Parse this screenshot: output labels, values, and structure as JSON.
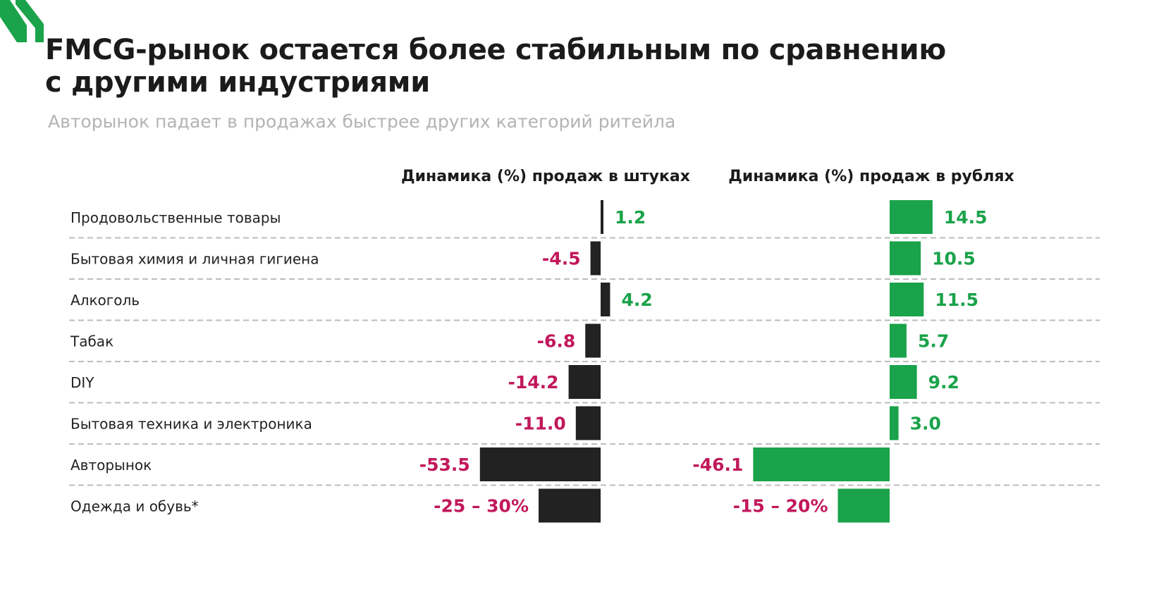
{
  "header": {
    "title_line1": "FMCG-рынок остается более стабильным по сравнению",
    "title_line2": "с другими индустриями",
    "subtitle": "Авторынок падает в продажах быстрее других категорий ритейла"
  },
  "logo": {
    "icon": "green-stripes-logo-icon",
    "color": "#1aa34a"
  },
  "colors": {
    "units_bar": "#222222",
    "rubles_bar": "#1aa34a",
    "negative_label": "#c2185b",
    "positive_label": "#1aa34a",
    "category_label": "#222222",
    "separator": "#bdbdbd"
  },
  "chart_data": [
    {
      "type": "bar",
      "orientation": "horizontal",
      "title": "Динамика (%) продаж в штуках",
      "categories": [
        "Продовольственные товары",
        "Бытовая химия и личная гигиена",
        "Алкоголь",
        "Табак",
        "DIY",
        "Бытовая техника и электроника",
        "Авторынок",
        "Одежда и обувь*"
      ],
      "values": [
        1.2,
        -4.5,
        4.2,
        -6.8,
        -14.2,
        -11.0,
        -53.5,
        -27.5
      ],
      "labels": [
        "1.2",
        "-4.5",
        "4.2",
        "-6.8",
        "-14.2",
        "-11.0",
        "-53.5",
        "-25 – 30%"
      ]
    },
    {
      "type": "bar",
      "orientation": "horizontal",
      "title": "Динамика (%) продаж в рублях",
      "categories": [
        "Продовольственные товары",
        "Бытовая химия и личная гигиена",
        "Алкоголь",
        "Табак",
        "DIY",
        "Бытовая техника и электроника",
        "Авторынок",
        "Одежда и обувь*"
      ],
      "values": [
        14.5,
        10.5,
        11.5,
        5.7,
        9.2,
        3.0,
        -46.1,
        -17.5
      ],
      "labels": [
        "14.5",
        "10.5",
        "11.5",
        "5.7",
        "9.2",
        "3.0",
        "-46.1",
        "-15 – 20%"
      ]
    }
  ]
}
